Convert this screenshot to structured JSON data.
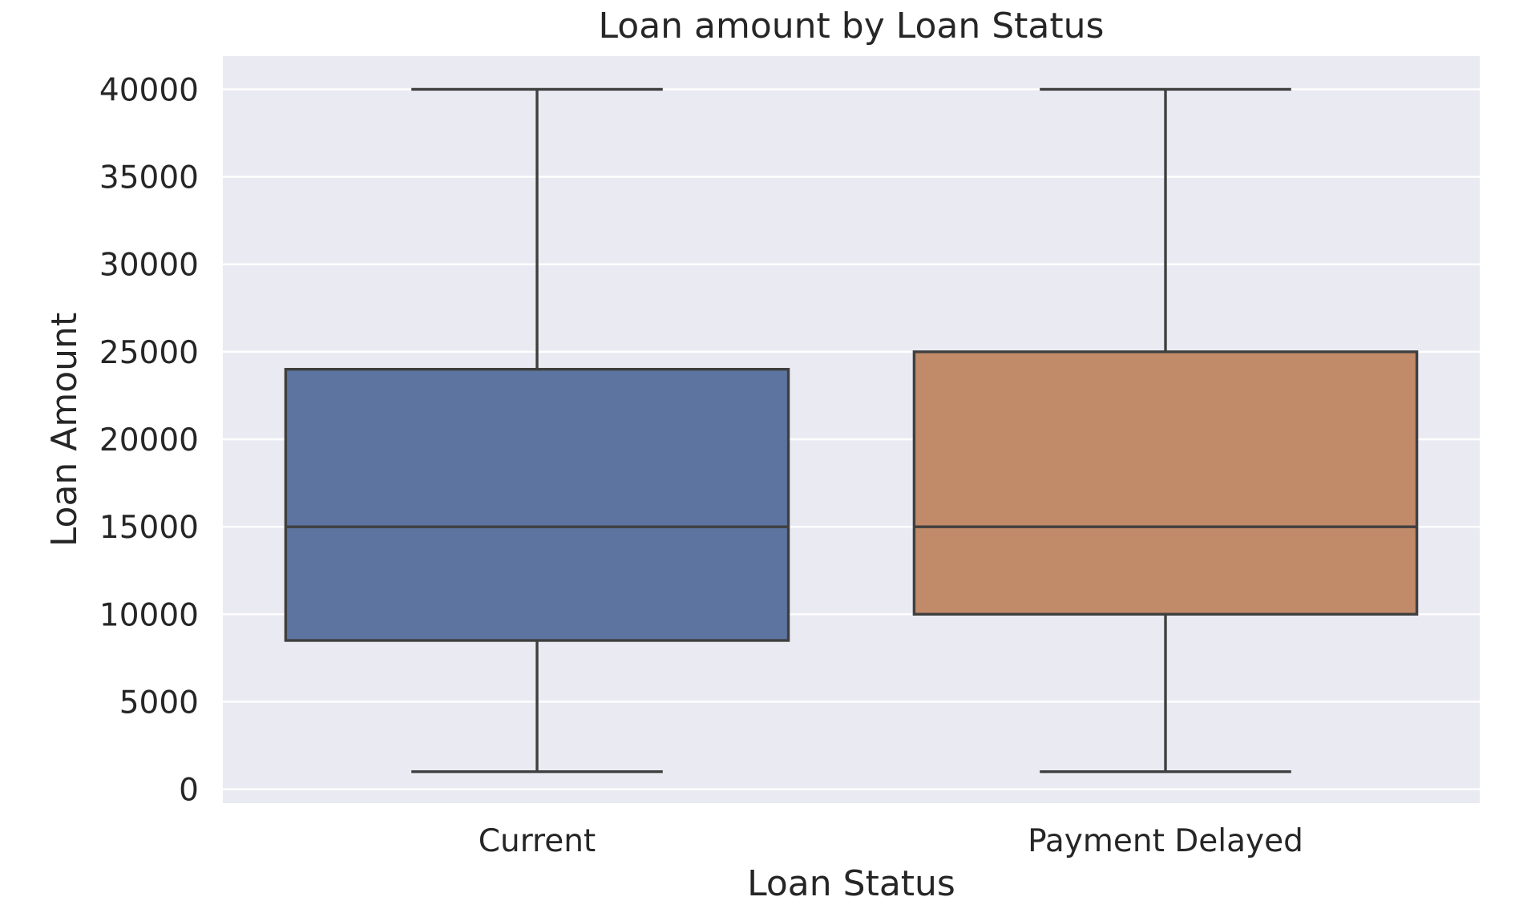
{
  "chart_data": {
    "type": "box",
    "title": "Loan amount by Loan Status",
    "xlabel": "Loan Status",
    "ylabel": "Loan Amount",
    "ylim": [
      -800,
      41900
    ],
    "yticks": [
      0,
      5000,
      10000,
      15000,
      20000,
      25000,
      30000,
      35000,
      40000
    ],
    "grid": true,
    "categories": [
      "Current",
      "Payment Delayed"
    ],
    "boxes": [
      {
        "category": "Current",
        "whisker_low": 1000,
        "q1": 8500,
        "median": 15000,
        "q3": 24000,
        "whisker_high": 40000,
        "color": "#5d74a0"
      },
      {
        "category": "Payment Delayed",
        "whisker_low": 1000,
        "q1": 10000,
        "median": 15000,
        "q3": 25000,
        "whisker_high": 40000,
        "color": "#c18a68"
      }
    ],
    "colors": {
      "plot_background": "#eaeaf2",
      "grid": "#ffffff",
      "line": "#3f3f3f"
    }
  }
}
